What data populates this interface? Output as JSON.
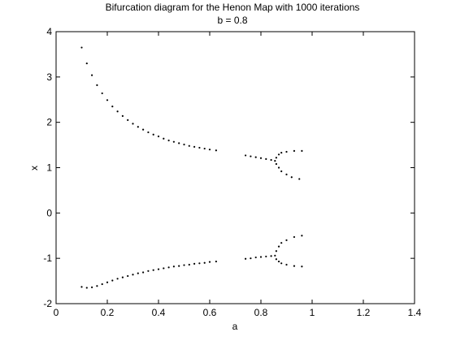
{
  "chart_data": {
    "type": "scatter",
    "title": "Bifurcation diagram for the Henon Map with 1000 iterations",
    "subtitle": "b = 0.8",
    "xlabel": "a",
    "ylabel": "x",
    "xlim": [
      0,
      1.4
    ],
    "ylim": [
      -2,
      4
    ],
    "xticks": [
      0,
      0.2,
      0.4,
      0.6,
      0.8,
      1,
      1.2,
      1.4
    ],
    "xtick_labels": [
      "0",
      "0.2",
      "0.4",
      "0.6",
      "0.8",
      "1",
      "1.2",
      "1.4"
    ],
    "yticks": [
      -2,
      -1,
      0,
      1,
      2,
      3,
      4
    ],
    "ytick_labels": [
      "-2",
      "-1",
      "0",
      "1",
      "2",
      "3",
      "4"
    ],
    "grid": false,
    "marker_color": "#000000",
    "series": [
      {
        "values": [
          [
            0.1,
            3.65
          ],
          [
            0.12,
            3.3
          ],
          [
            0.14,
            3.04
          ],
          [
            0.16,
            2.82
          ],
          [
            0.18,
            2.64
          ],
          [
            0.2,
            2.49
          ],
          [
            0.22,
            2.35
          ],
          [
            0.24,
            2.24
          ],
          [
            0.26,
            2.14
          ],
          [
            0.28,
            2.05
          ],
          [
            0.3,
            1.97
          ],
          [
            0.32,
            1.9
          ],
          [
            0.34,
            1.84
          ],
          [
            0.36,
            1.78
          ],
          [
            0.38,
            1.73
          ],
          [
            0.4,
            1.69
          ],
          [
            0.42,
            1.64
          ],
          [
            0.44,
            1.6
          ],
          [
            0.46,
            1.57
          ],
          [
            0.48,
            1.54
          ],
          [
            0.5,
            1.51
          ],
          [
            0.52,
            1.48
          ],
          [
            0.54,
            1.46
          ],
          [
            0.56,
            1.44
          ],
          [
            0.58,
            1.42
          ],
          [
            0.6,
            1.4
          ],
          [
            0.625,
            1.38
          ],
          [
            0.74,
            1.27
          ],
          [
            0.76,
            1.25
          ],
          [
            0.78,
            1.23
          ],
          [
            0.8,
            1.21
          ],
          [
            0.82,
            1.19
          ],
          [
            0.84,
            1.17
          ],
          [
            0.855,
            1.15
          ],
          [
            0.86,
            1.22
          ],
          [
            0.87,
            1.29
          ],
          [
            0.88,
            1.33
          ],
          [
            0.9,
            1.35
          ],
          [
            0.93,
            1.37
          ],
          [
            0.96,
            1.37
          ],
          [
            0.86,
            1.08
          ],
          [
            0.87,
            1.0
          ],
          [
            0.88,
            0.92
          ],
          [
            0.9,
            0.85
          ],
          [
            0.92,
            0.79
          ],
          [
            0.95,
            0.75
          ],
          [
            0.1,
            -1.63
          ],
          [
            0.12,
            -1.65
          ],
          [
            0.14,
            -1.64
          ],
          [
            0.16,
            -1.61
          ],
          [
            0.18,
            -1.57
          ],
          [
            0.2,
            -1.53
          ],
          [
            0.22,
            -1.49
          ],
          [
            0.24,
            -1.45
          ],
          [
            0.26,
            -1.42
          ],
          [
            0.28,
            -1.39
          ],
          [
            0.3,
            -1.36
          ],
          [
            0.32,
            -1.33
          ],
          [
            0.34,
            -1.31
          ],
          [
            0.36,
            -1.28
          ],
          [
            0.38,
            -1.26
          ],
          [
            0.4,
            -1.24
          ],
          [
            0.42,
            -1.22
          ],
          [
            0.44,
            -1.2
          ],
          [
            0.46,
            -1.18
          ],
          [
            0.48,
            -1.17
          ],
          [
            0.5,
            -1.15
          ],
          [
            0.52,
            -1.14
          ],
          [
            0.54,
            -1.12
          ],
          [
            0.56,
            -1.11
          ],
          [
            0.58,
            -1.1
          ],
          [
            0.6,
            -1.08
          ],
          [
            0.625,
            -1.07
          ],
          [
            0.74,
            -1.01
          ],
          [
            0.76,
            -1.0
          ],
          [
            0.78,
            -0.98
          ],
          [
            0.8,
            -0.97
          ],
          [
            0.82,
            -0.96
          ],
          [
            0.84,
            -0.95
          ],
          [
            0.855,
            -0.94
          ],
          [
            0.86,
            -0.84
          ],
          [
            0.87,
            -0.74
          ],
          [
            0.88,
            -0.66
          ],
          [
            0.9,
            -0.6
          ],
          [
            0.93,
            -0.53
          ],
          [
            0.96,
            -0.5
          ],
          [
            0.86,
            -1.02
          ],
          [
            0.87,
            -1.07
          ],
          [
            0.88,
            -1.11
          ],
          [
            0.9,
            -1.14
          ],
          [
            0.93,
            -1.17
          ],
          [
            0.96,
            -1.18
          ]
        ]
      }
    ]
  }
}
